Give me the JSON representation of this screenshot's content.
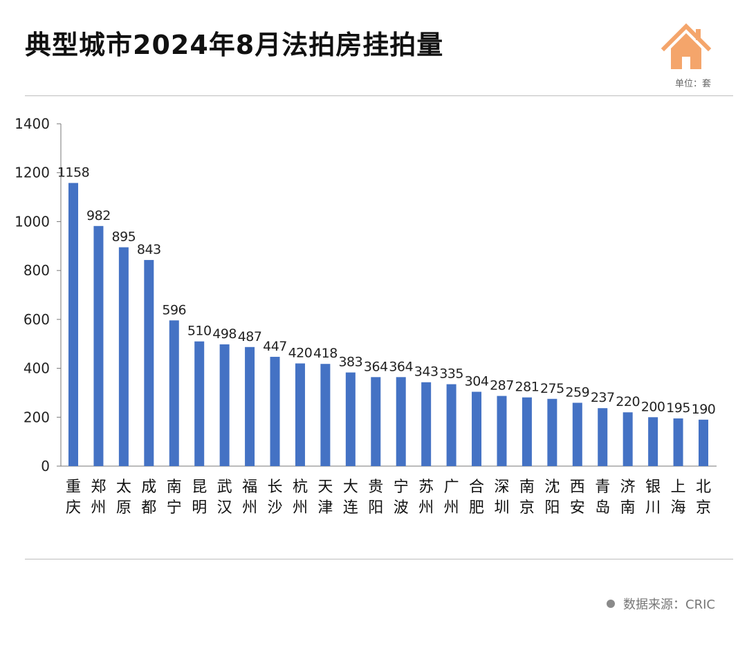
{
  "header": {
    "title": "典型城市2024年8月法拍房挂拍量",
    "unit": "单位：套",
    "logo_icon": "house-icon",
    "logo_color": "#f4a56b"
  },
  "footer": {
    "source": "数据来源：CRIC"
  },
  "chart_data": {
    "type": "bar",
    "title": "典型城市2024年8月法拍房挂拍量",
    "xlabel": "",
    "ylabel": "",
    "ylim": [
      0,
      1400
    ],
    "yticks": [
      0,
      200,
      400,
      600,
      800,
      1000,
      1200,
      1400
    ],
    "grid": false,
    "bar_color": "#4472c4",
    "categories": [
      "重庆",
      "郑州",
      "太原",
      "成都",
      "南宁",
      "昆明",
      "武汉",
      "福州",
      "长沙",
      "杭州",
      "天津",
      "大连",
      "贵阳",
      "宁波",
      "苏州",
      "广州",
      "合肥",
      "深圳",
      "南京",
      "沈阳",
      "西安",
      "青岛",
      "济南",
      "银川",
      "上海",
      "北京"
    ],
    "values": [
      1158,
      982,
      895,
      843,
      596,
      510,
      498,
      487,
      447,
      420,
      418,
      383,
      364,
      364,
      343,
      335,
      304,
      287,
      281,
      275,
      259,
      237,
      220,
      200,
      195,
      190
    ]
  }
}
